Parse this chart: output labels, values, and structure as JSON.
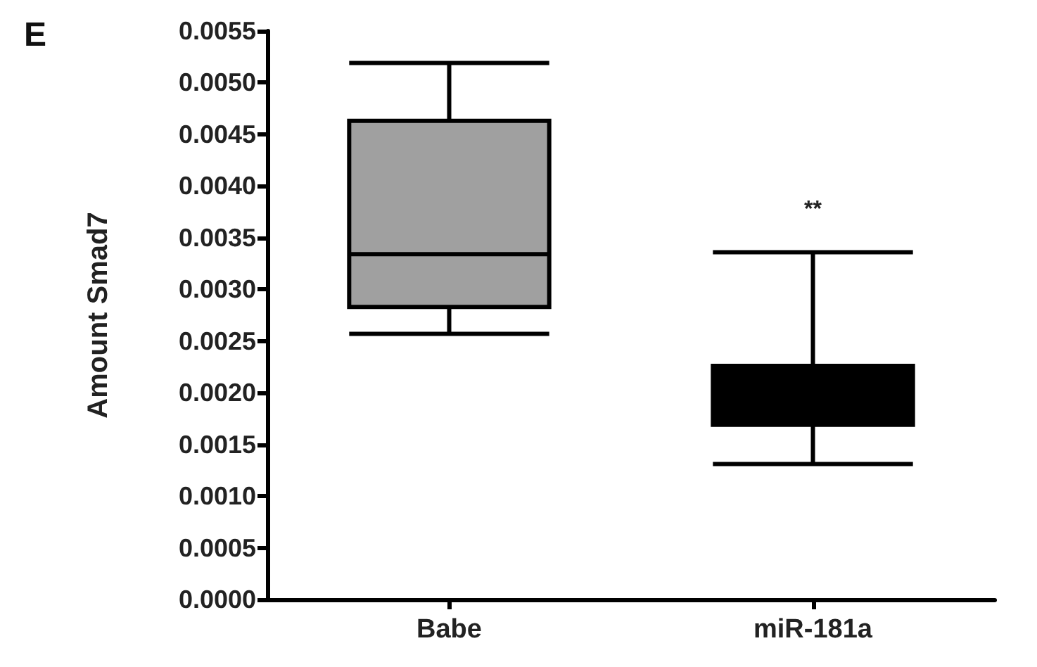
{
  "chart_data": {
    "type": "box",
    "title": "E",
    "ylabel": "Amount Smad7",
    "categories": [
      "Babe",
      "miR-181a"
    ],
    "boxes": [
      {
        "low": 0.00257,
        "q1": 0.00283,
        "median": 0.00334,
        "q3": 0.00463,
        "high": 0.00519
      },
      {
        "low": 0.00131,
        "q1": 0.00169,
        "median": 0.002,
        "q3": 0.00226,
        "high": 0.00336
      }
    ],
    "colors": [
      "#a0a0a0",
      "#000000"
    ],
    "ylim": [
      0,
      0.0055
    ],
    "yticks": [
      {
        "value": 0,
        "label": "0.0000"
      },
      {
        "value": 0.0005,
        "label": "0.0005"
      },
      {
        "value": 0.001,
        "label": "0.0010"
      },
      {
        "value": 0.0015,
        "label": "0.0015"
      },
      {
        "value": 0.002,
        "label": "0.0020"
      },
      {
        "value": 0.0025,
        "label": "0.0025"
      },
      {
        "value": 0.003,
        "label": "0.0030"
      },
      {
        "value": 0.0035,
        "label": "0.0035"
      },
      {
        "value": 0.004,
        "label": "0.0040"
      },
      {
        "value": 0.0045,
        "label": "0.0045"
      },
      {
        "value": 0.005,
        "label": "0.0050"
      },
      {
        "value": 0.0055,
        "label": "0.0055"
      }
    ],
    "annotations": [
      "**"
    ],
    "grid": false
  }
}
